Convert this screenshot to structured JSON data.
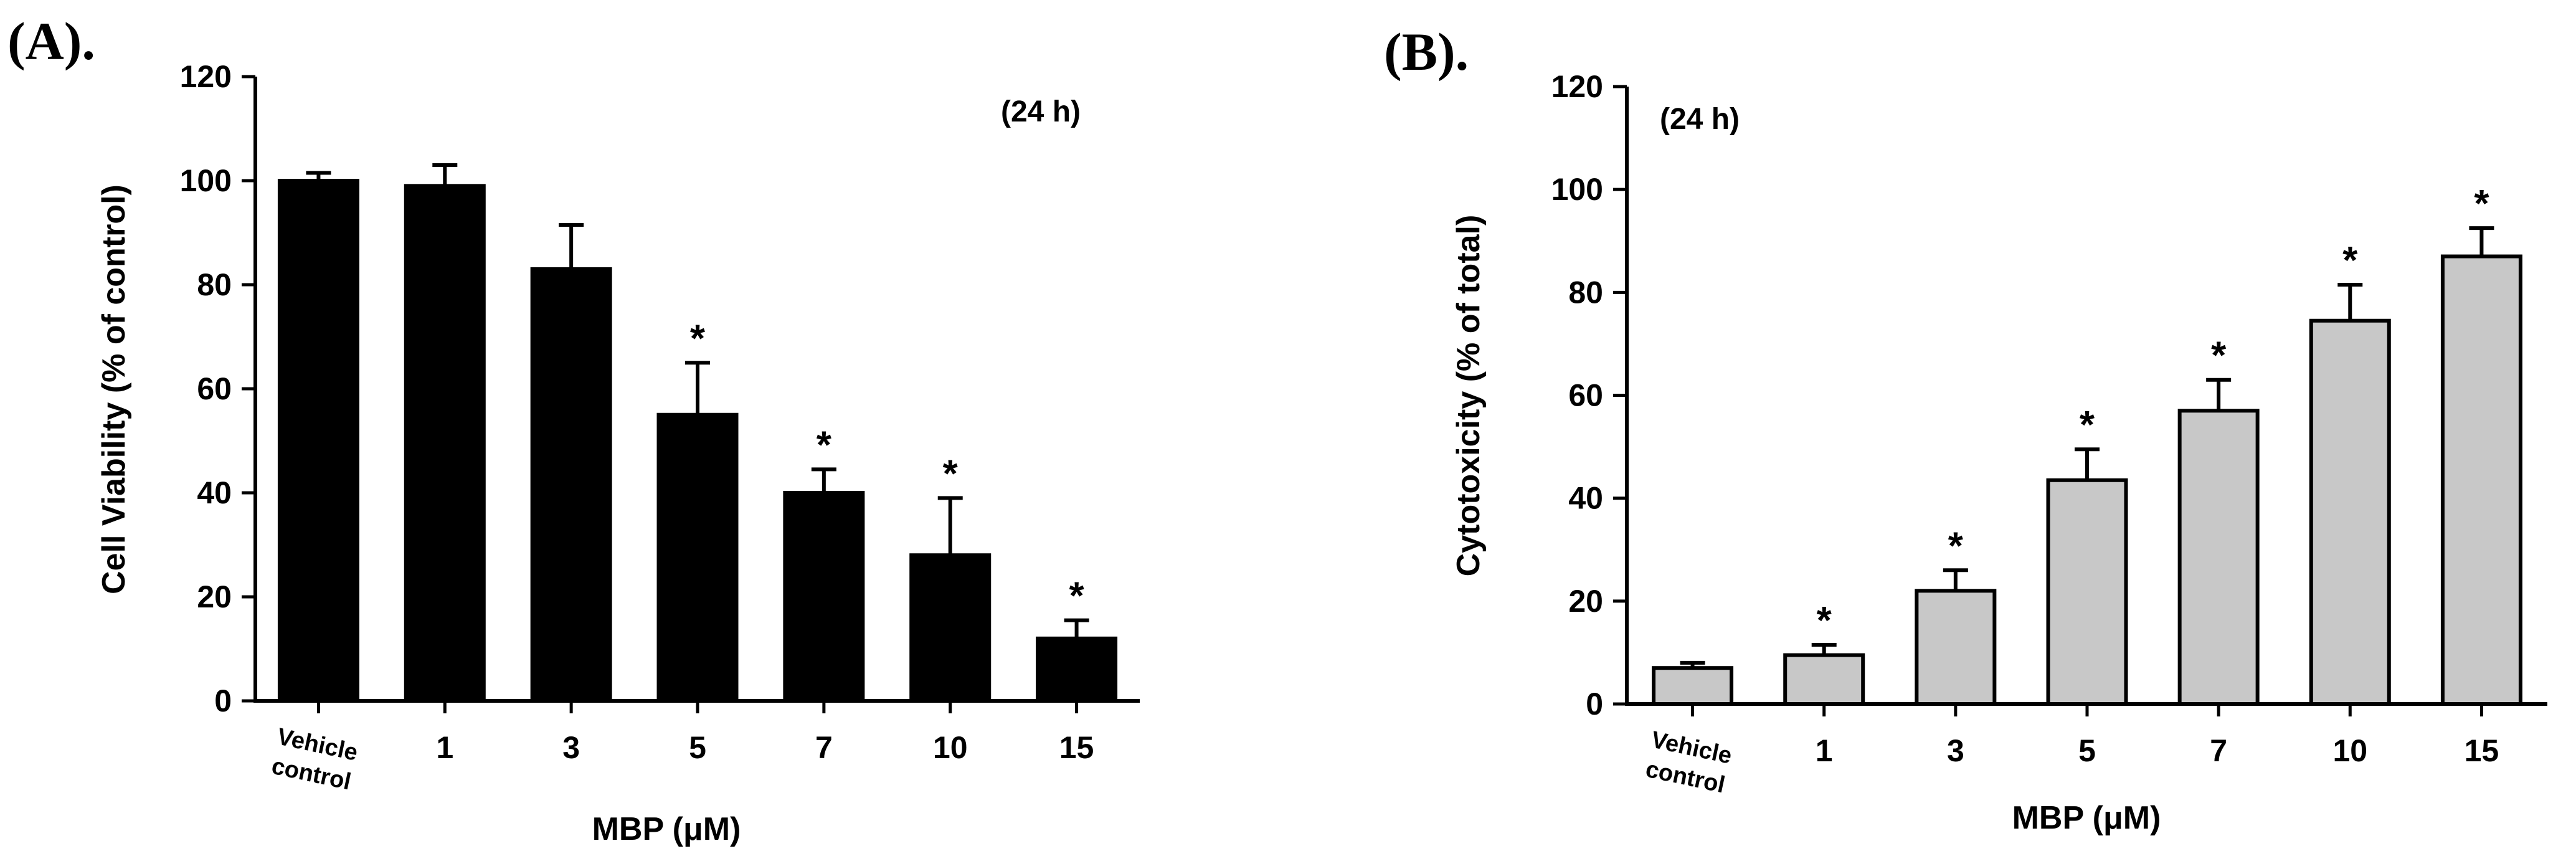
{
  "chart_data": [
    {
      "type": "bar",
      "panel_label": "(A).",
      "annotation": "(24 h)",
      "categories": [
        [
          "Vehicle",
          "control"
        ],
        [
          "1"
        ],
        [
          "3"
        ],
        [
          "5"
        ],
        [
          "7"
        ],
        [
          "10"
        ],
        [
          "15"
        ]
      ],
      "series": [
        {
          "values": [
            100,
            99,
            83,
            55,
            40,
            28,
            12
          ],
          "errors": [
            1.5,
            4,
            8.5,
            10,
            4.5,
            11,
            3.5
          ],
          "significant": [
            false,
            false,
            false,
            true,
            true,
            true,
            true
          ]
        }
      ],
      "significance_marker": "*",
      "xlabel": "MBP (μM)",
      "ylabel": "Cell Viability (% of control)",
      "ylim": [
        0,
        120
      ],
      "yticks": [
        0,
        20,
        40,
        60,
        80,
        100,
        120
      ],
      "bar_color": "#000000",
      "grid": false
    },
    {
      "type": "bar",
      "panel_label": "(B).",
      "annotation": "(24 h)",
      "categories": [
        [
          "Vehicle",
          "control"
        ],
        [
          "1"
        ],
        [
          "3"
        ],
        [
          "5"
        ],
        [
          "7"
        ],
        [
          "10"
        ],
        [
          "15"
        ]
      ],
      "series": [
        {
          "values": [
            7,
            9.5,
            22,
            43.5,
            57,
            74.5,
            87
          ],
          "errors": [
            1,
            2,
            4,
            6,
            6,
            7,
            5.5
          ],
          "significant": [
            false,
            true,
            true,
            true,
            true,
            true,
            true
          ]
        }
      ],
      "significance_marker": "*",
      "xlabel": "MBP (μM)",
      "ylabel": "Cytotoxicity (% of total)",
      "ylim": [
        0,
        120
      ],
      "yticks": [
        0,
        20,
        40,
        60,
        80,
        100,
        120
      ],
      "bar_color": "#c8c8c8",
      "grid": false
    }
  ]
}
